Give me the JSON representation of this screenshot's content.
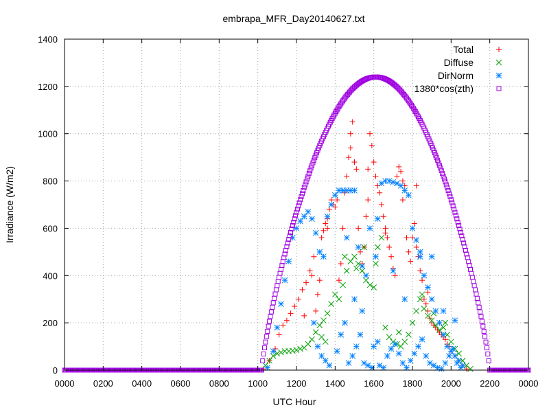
{
  "chart_data": {
    "type": "scatter",
    "title": "embrapa_MFR_Day20140627.txt",
    "xlabel": "UTC Hour",
    "ylabel": "Irradiance (W/m2)",
    "xlim": [
      0,
      24
    ],
    "ylim": [
      0,
      1400
    ],
    "x_ticks": [
      0,
      2,
      4,
      6,
      8,
      10,
      12,
      14,
      16,
      18,
      20,
      22,
      24
    ],
    "x_tick_labels": [
      "0000",
      "0200",
      "0400",
      "0600",
      "0800",
      "1000",
      "1200",
      "1400",
      "1600",
      "1800",
      "2000",
      "2200",
      "0000"
    ],
    "y_ticks": [
      0,
      200,
      400,
      600,
      800,
      1000,
      1200,
      1400
    ],
    "y_tick_labels": [
      "0",
      "200",
      "400",
      "600",
      "800",
      "1000",
      "1200",
      "1400"
    ],
    "grid": true,
    "legend_position": "top-right",
    "series": [
      {
        "name": "Total",
        "color": "#ff0000",
        "marker": "plus",
        "points": [
          [
            10.3,
            5
          ],
          [
            10.6,
            40
          ],
          [
            10.9,
            90
          ],
          [
            11.1,
            150
          ],
          [
            11.3,
            190
          ],
          [
            11.5,
            210
          ],
          [
            11.7,
            240
          ],
          [
            11.9,
            270
          ],
          [
            12.1,
            300
          ],
          [
            12.3,
            340
          ],
          [
            12.5,
            370
          ],
          [
            12.7,
            420
          ],
          [
            12.9,
            480
          ],
          [
            13.0,
            250
          ],
          [
            13.1,
            320
          ],
          [
            13.2,
            380
          ],
          [
            13.3,
            560
          ],
          [
            13.4,
            590
          ],
          [
            13.5,
            620
          ],
          [
            13.6,
            640
          ],
          [
            13.7,
            680
          ],
          [
            13.8,
            720
          ],
          [
            13.9,
            700
          ],
          [
            14.0,
            690
          ],
          [
            14.1,
            720
          ],
          [
            14.2,
            380
          ],
          [
            14.3,
            450
          ],
          [
            14.4,
            600
          ],
          [
            14.5,
            750
          ],
          [
            14.6,
            820
          ],
          [
            14.7,
            900
          ],
          [
            14.8,
            1000
          ],
          [
            14.9,
            1050
          ],
          [
            15.0,
            880
          ],
          [
            15.1,
            850
          ],
          [
            15.2,
            600
          ],
          [
            15.3,
            500
          ],
          [
            15.4,
            450
          ],
          [
            15.5,
            520
          ],
          [
            15.6,
            650
          ],
          [
            15.7,
            850
          ],
          [
            15.8,
            1000
          ],
          [
            15.9,
            950
          ],
          [
            16.0,
            880
          ],
          [
            16.1,
            820
          ],
          [
            16.2,
            780
          ],
          [
            16.3,
            750
          ],
          [
            16.4,
            700
          ],
          [
            16.5,
            650
          ],
          [
            16.6,
            600
          ],
          [
            16.7,
            560
          ],
          [
            16.8,
            520
          ],
          [
            16.9,
            480
          ],
          [
            17.0,
            430
          ],
          [
            17.1,
            400
          ],
          [
            17.2,
            820
          ],
          [
            17.3,
            860
          ],
          [
            17.4,
            840
          ],
          [
            17.5,
            800
          ],
          [
            17.6,
            780
          ],
          [
            17.7,
            560
          ],
          [
            17.8,
            500
          ],
          [
            17.9,
            460
          ],
          [
            18.0,
            560
          ],
          [
            18.1,
            620
          ],
          [
            18.2,
            520
          ],
          [
            18.3,
            480
          ],
          [
            18.4,
            420
          ],
          [
            18.5,
            380
          ],
          [
            18.6,
            300
          ],
          [
            18.7,
            280
          ],
          [
            18.8,
            250
          ],
          [
            18.9,
            220
          ],
          [
            19.0,
            200
          ],
          [
            19.1,
            190
          ],
          [
            19.2,
            180
          ],
          [
            19.3,
            170
          ],
          [
            19.4,
            160
          ],
          [
            19.5,
            150
          ],
          [
            19.6,
            140
          ],
          [
            19.7,
            130
          ],
          [
            19.8,
            110
          ],
          [
            19.9,
            100
          ],
          [
            20.0,
            80
          ],
          [
            20.2,
            60
          ],
          [
            20.4,
            40
          ],
          [
            20.6,
            20
          ],
          [
            20.8,
            5
          ],
          [
            12.4,
            230
          ],
          [
            12.8,
            400
          ],
          [
            13.6,
            600
          ],
          [
            14.8,
            940
          ],
          [
            15.7,
            720
          ],
          [
            16.6,
            580
          ],
          [
            17.5,
            720
          ],
          [
            18.2,
            780
          ],
          [
            18.8,
            330
          ],
          [
            19.4,
            200
          ]
        ]
      },
      {
        "name": "Diffuse",
        "color": "#00a000",
        "marker": "cross",
        "points": [
          [
            10.4,
            20
          ],
          [
            10.6,
            40
          ],
          [
            10.8,
            60
          ],
          [
            11.0,
            70
          ],
          [
            11.2,
            75
          ],
          [
            11.4,
            80
          ],
          [
            11.6,
            80
          ],
          [
            11.8,
            82
          ],
          [
            12.0,
            85
          ],
          [
            12.2,
            90
          ],
          [
            12.4,
            95
          ],
          [
            12.6,
            110
          ],
          [
            12.8,
            130
          ],
          [
            13.0,
            160
          ],
          [
            13.2,
            190
          ],
          [
            13.4,
            210
          ],
          [
            13.6,
            240
          ],
          [
            13.8,
            280
          ],
          [
            14.0,
            320
          ],
          [
            14.2,
            300
          ],
          [
            14.4,
            360
          ],
          [
            14.6,
            420
          ],
          [
            14.8,
            460
          ],
          [
            15.0,
            480
          ],
          [
            15.2,
            450
          ],
          [
            15.4,
            420
          ],
          [
            15.6,
            380
          ],
          [
            15.8,
            360
          ],
          [
            16.0,
            350
          ],
          [
            16.2,
            520
          ],
          [
            16.4,
            560
          ],
          [
            16.6,
            180
          ],
          [
            16.8,
            140
          ],
          [
            17.0,
            120
          ],
          [
            17.2,
            110
          ],
          [
            17.4,
            100
          ],
          [
            17.6,
            120
          ],
          [
            17.8,
            150
          ],
          [
            18.0,
            200
          ],
          [
            18.2,
            250
          ],
          [
            18.4,
            300
          ],
          [
            18.6,
            260
          ],
          [
            18.8,
            230
          ],
          [
            19.0,
            210
          ],
          [
            19.2,
            190
          ],
          [
            19.4,
            170
          ],
          [
            19.6,
            180
          ],
          [
            19.8,
            150
          ],
          [
            20.0,
            120
          ],
          [
            20.2,
            90
          ],
          [
            20.4,
            70
          ],
          [
            20.6,
            40
          ],
          [
            20.8,
            20
          ],
          [
            21.0,
            5
          ],
          [
            13.3,
            140
          ],
          [
            13.5,
            120
          ],
          [
            14.5,
            480
          ],
          [
            15.1,
            430
          ],
          [
            15.5,
            520
          ],
          [
            16.1,
            450
          ],
          [
            17.3,
            160
          ],
          [
            18.5,
            320
          ],
          [
            19.1,
            240
          ],
          [
            19.7,
            200
          ]
        ]
      },
      {
        "name": "DirNorm",
        "color": "#0080ff",
        "marker": "star",
        "points": [
          [
            10.5,
            10
          ],
          [
            10.8,
            80
          ],
          [
            11.0,
            180
          ],
          [
            11.2,
            280
          ],
          [
            11.4,
            380
          ],
          [
            11.6,
            460
          ],
          [
            11.8,
            560
          ],
          [
            12.0,
            600
          ],
          [
            12.2,
            630
          ],
          [
            12.4,
            650
          ],
          [
            12.6,
            670
          ],
          [
            12.8,
            640
          ],
          [
            13.0,
            580
          ],
          [
            13.2,
            500
          ],
          [
            13.4,
            480
          ],
          [
            13.6,
            650
          ],
          [
            13.8,
            700
          ],
          [
            14.0,
            740
          ],
          [
            14.2,
            760
          ],
          [
            14.4,
            760
          ],
          [
            14.6,
            760
          ],
          [
            14.8,
            760
          ],
          [
            15.0,
            760
          ],
          [
            15.2,
            520
          ],
          [
            15.4,
            440
          ],
          [
            15.6,
            400
          ],
          [
            15.8,
            600
          ],
          [
            16.0,
            100
          ],
          [
            16.2,
            120
          ],
          [
            16.4,
            790
          ],
          [
            16.6,
            800
          ],
          [
            16.8,
            800
          ],
          [
            17.0,
            795
          ],
          [
            17.2,
            790
          ],
          [
            17.4,
            780
          ],
          [
            17.6,
            760
          ],
          [
            17.8,
            740
          ],
          [
            18.0,
            600
          ],
          [
            18.2,
            550
          ],
          [
            18.4,
            500
          ],
          [
            18.6,
            400
          ],
          [
            18.8,
            350
          ],
          [
            19.0,
            300
          ],
          [
            19.2,
            250
          ],
          [
            19.4,
            200
          ],
          [
            19.6,
            150
          ],
          [
            19.8,
            100
          ],
          [
            20.0,
            80
          ],
          [
            20.2,
            60
          ],
          [
            20.4,
            40
          ],
          [
            20.6,
            20
          ],
          [
            12.9,
            200
          ],
          [
            13.1,
            100
          ],
          [
            13.3,
            60
          ],
          [
            13.5,
            40
          ],
          [
            13.7,
            20
          ],
          [
            14.1,
            80
          ],
          [
            14.3,
            150
          ],
          [
            14.5,
            200
          ],
          [
            14.7,
            30
          ],
          [
            14.9,
            60
          ],
          [
            15.1,
            100
          ],
          [
            15.3,
            150
          ],
          [
            15.5,
            30
          ],
          [
            15.7,
            20
          ],
          [
            15.9,
            10
          ],
          [
            16.1,
            480
          ],
          [
            16.3,
            20
          ],
          [
            16.5,
            10
          ],
          [
            16.7,
            60
          ],
          [
            16.9,
            90
          ],
          [
            17.1,
            110
          ],
          [
            17.3,
            70
          ],
          [
            17.5,
            30
          ],
          [
            17.7,
            10
          ],
          [
            17.9,
            40
          ],
          [
            18.1,
            70
          ],
          [
            18.3,
            100
          ],
          [
            18.5,
            130
          ],
          [
            18.7,
            60
          ],
          [
            18.9,
            30
          ],
          [
            19.1,
            20
          ],
          [
            19.3,
            10
          ],
          [
            19.5,
            5
          ],
          [
            19.7,
            30
          ],
          [
            19.9,
            60
          ],
          [
            20.1,
            90
          ],
          [
            20.3,
            30
          ],
          [
            20.5,
            10
          ],
          [
            14.6,
            560
          ],
          [
            15.0,
            300
          ],
          [
            15.4,
            250
          ],
          [
            16.2,
            640
          ],
          [
            17.0,
            420
          ],
          [
            17.6,
            300
          ],
          [
            18.4,
            480
          ],
          [
            19.0,
            480
          ],
          [
            19.6,
            250
          ],
          [
            20.2,
            210
          ]
        ]
      },
      {
        "name": "1380*cos(zth)",
        "color": "#a000e0",
        "marker": "square",
        "curve": {
          "x_start": 10.2,
          "x_peak": 16.1,
          "x_end": 22.0,
          "peak": 1240,
          "baseline": 0,
          "exponent": 0.8,
          "sample_step": 0.05
        }
      }
    ]
  }
}
